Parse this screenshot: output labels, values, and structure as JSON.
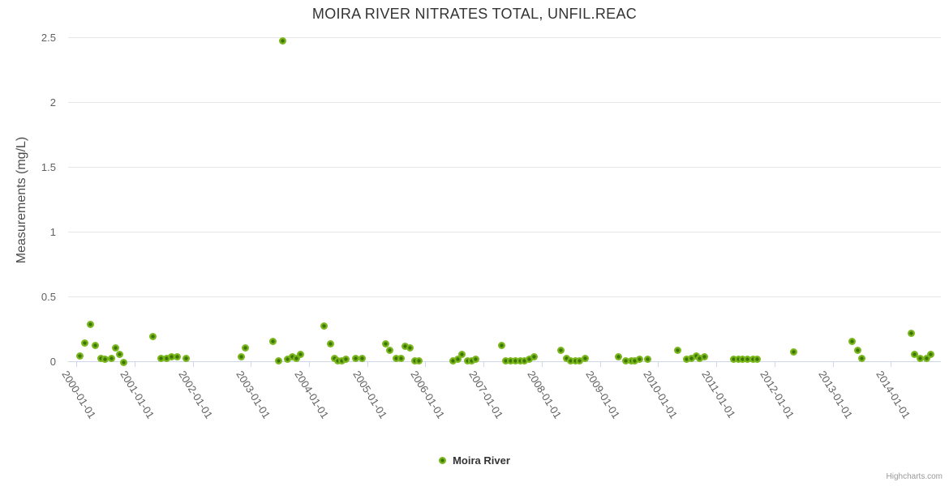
{
  "chart": {
    "title": "MOIRA RIVER NITRATES TOTAL, UNFIL.REAC",
    "credits": "Highcharts.com"
  },
  "colors": {
    "marker_outer": "#7ab71c",
    "marker_inner": "#3d7506",
    "grid": "#e6e6e6",
    "axis_line": "#ccd6eb",
    "title_text": "#333333",
    "tick_text": "#606060",
    "credits_text": "#999999"
  },
  "chart_data": {
    "type": "scatter",
    "title": "MOIRA RIVER NITRATES TOTAL, UNFIL.REAC",
    "xlabel": "",
    "ylabel": "Measurements (mg/L)",
    "ylim": [
      0,
      2.5
    ],
    "yticks": [
      0,
      0.5,
      1,
      1.5,
      2,
      2.5
    ],
    "xlim_years": [
      1999.86,
      2014.86
    ],
    "xtick_labels": [
      "2000-01-01",
      "2001-01-01",
      "2002-01-01",
      "2003-01-01",
      "2004-01-01",
      "2005-01-01",
      "2006-01-01",
      "2007-01-01",
      "2008-01-01",
      "2009-01-01",
      "2010-01-01",
      "2011-01-01",
      "2012-01-01",
      "2013-01-01",
      "2014-01-01"
    ],
    "grid": true,
    "legend_position": "bottom-center",
    "series": [
      {
        "name": "Moira River",
        "color": "#7ab71c",
        "points": [
          [
            2000.06,
            0.05
          ],
          [
            2000.14,
            0.15
          ],
          [
            2000.25,
            0.29
          ],
          [
            2000.33,
            0.13
          ],
          [
            2000.42,
            0.03
          ],
          [
            2000.5,
            0.02
          ],
          [
            2000.61,
            0.03
          ],
          [
            2000.68,
            0.11
          ],
          [
            2000.74,
            0.06
          ],
          [
            2000.81,
            0.0
          ],
          [
            2001.32,
            0.2
          ],
          [
            2001.46,
            0.03
          ],
          [
            2001.55,
            0.03
          ],
          [
            2001.64,
            0.04
          ],
          [
            2001.73,
            0.04
          ],
          [
            2001.89,
            0.03
          ],
          [
            2002.84,
            0.04
          ],
          [
            2002.9,
            0.11
          ],
          [
            2003.38,
            0.16
          ],
          [
            2003.48,
            0.01
          ],
          [
            2003.55,
            2.48
          ],
          [
            2003.63,
            0.02
          ],
          [
            2003.72,
            0.04
          ],
          [
            2003.79,
            0.03
          ],
          [
            2003.86,
            0.06
          ],
          [
            2004.26,
            0.28
          ],
          [
            2004.37,
            0.14
          ],
          [
            2004.44,
            0.03
          ],
          [
            2004.5,
            0.01
          ],
          [
            2004.57,
            0.01
          ],
          [
            2004.64,
            0.02
          ],
          [
            2004.8,
            0.03
          ],
          [
            2004.92,
            0.03
          ],
          [
            2005.32,
            0.14
          ],
          [
            2005.39,
            0.09
          ],
          [
            2005.5,
            0.03
          ],
          [
            2005.58,
            0.03
          ],
          [
            2005.65,
            0.12
          ],
          [
            2005.74,
            0.11
          ],
          [
            2005.82,
            0.01
          ],
          [
            2005.89,
            0.01
          ],
          [
            2006.48,
            0.01
          ],
          [
            2006.56,
            0.02
          ],
          [
            2006.63,
            0.06
          ],
          [
            2006.73,
            0.01
          ],
          [
            2006.8,
            0.01
          ],
          [
            2006.87,
            0.02
          ],
          [
            2007.31,
            0.13
          ],
          [
            2007.38,
            0.01
          ],
          [
            2007.47,
            0.01
          ],
          [
            2007.55,
            0.01
          ],
          [
            2007.63,
            0.01
          ],
          [
            2007.7,
            0.01
          ],
          [
            2007.78,
            0.02
          ],
          [
            2007.87,
            0.04
          ],
          [
            2008.33,
            0.09
          ],
          [
            2008.43,
            0.03
          ],
          [
            2008.5,
            0.01
          ],
          [
            2008.58,
            0.01
          ],
          [
            2008.65,
            0.01
          ],
          [
            2008.75,
            0.03
          ],
          [
            2009.32,
            0.04
          ],
          [
            2009.45,
            0.01
          ],
          [
            2009.54,
            0.01
          ],
          [
            2009.6,
            0.01
          ],
          [
            2009.68,
            0.02
          ],
          [
            2009.82,
            0.02
          ],
          [
            2010.33,
            0.09
          ],
          [
            2010.49,
            0.02
          ],
          [
            2010.57,
            0.03
          ],
          [
            2010.65,
            0.05
          ],
          [
            2010.71,
            0.03
          ],
          [
            2010.79,
            0.04
          ],
          [
            2011.3,
            0.02
          ],
          [
            2011.38,
            0.02
          ],
          [
            2011.45,
            0.02
          ],
          [
            2011.53,
            0.02
          ],
          [
            2011.63,
            0.02
          ],
          [
            2011.7,
            0.02
          ],
          [
            2012.33,
            0.08
          ],
          [
            2013.34,
            0.16
          ],
          [
            2013.43,
            0.09
          ],
          [
            2013.5,
            0.03
          ],
          [
            2014.35,
            0.22
          ],
          [
            2014.41,
            0.06
          ],
          [
            2014.51,
            0.03
          ],
          [
            2014.61,
            0.03
          ],
          [
            2014.69,
            0.06
          ]
        ]
      }
    ]
  }
}
